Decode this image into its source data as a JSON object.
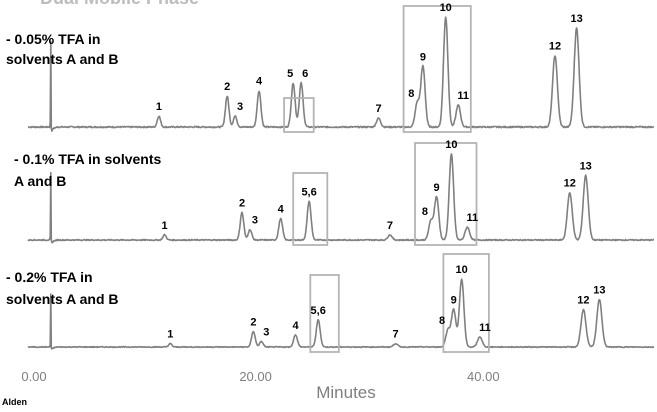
{
  "chart_data": {
    "type": "line",
    "title": "Dual Mobile Phase",
    "xlabel": "Minutes",
    "xlim": [
      0,
      55
    ],
    "x_ticks": [
      "0.00",
      "20.00",
      "40.00"
    ],
    "x_tick_values": [
      0,
      20,
      40
    ],
    "grid": false,
    "footer_text": "Alden",
    "colors": {
      "trace": "#808080",
      "box": "#b4b4b4",
      "text": "#000000",
      "axis_text": "#7f7f7f"
    },
    "series": [
      {
        "name": "- 0.05% TFA in solvents A and B",
        "label_lines": [
          "- 0.05% TFA in",
          "solvents A and B"
        ],
        "injection_time": 2.0,
        "peaks": [
          {
            "label": "1",
            "t": 11.5,
            "h": 0.1
          },
          {
            "label": "2",
            "t": 17.5,
            "h": 0.28
          },
          {
            "label": "3",
            "t": 18.2,
            "h": 0.1
          },
          {
            "label": "4",
            "t": 20.3,
            "h": 0.33
          },
          {
            "label": "5",
            "t": 23.3,
            "h": 0.4
          },
          {
            "label": "6",
            "t": 24.0,
            "h": 0.4
          },
          {
            "label": "7",
            "t": 30.8,
            "h": 0.08
          },
          {
            "label": "8",
            "t": 34.2,
            "h": 0.22
          },
          {
            "label": "9",
            "t": 34.7,
            "h": 0.55
          },
          {
            "label": "10",
            "t": 36.7,
            "h": 1.0
          },
          {
            "label": "11",
            "t": 37.8,
            "h": 0.2
          },
          {
            "label": "12",
            "t": 46.3,
            "h": 0.65
          },
          {
            "label": "13",
            "t": 48.2,
            "h": 0.9
          }
        ],
        "boxes": [
          [
            22.5,
            25.1
          ],
          [
            33.0,
            38.9
          ]
        ]
      },
      {
        "name": "- 0.1% TFA in solvents A and B",
        "label_lines": [
          "- 0.1% TFA in solvents",
          "A and B"
        ],
        "injection_time": 2.0,
        "peaks": [
          {
            "label": "1",
            "t": 12.0,
            "h": 0.06
          },
          {
            "label": "2",
            "t": 18.8,
            "h": 0.32
          },
          {
            "label": "3",
            "t": 19.5,
            "h": 0.12
          },
          {
            "label": "4",
            "t": 22.2,
            "h": 0.25
          },
          {
            "label": "5,6",
            "t": 24.7,
            "h": 0.45
          },
          {
            "label": "7",
            "t": 31.8,
            "h": 0.06
          },
          {
            "label": "8",
            "t": 35.4,
            "h": 0.22
          },
          {
            "label": "9",
            "t": 35.9,
            "h": 0.5
          },
          {
            "label": "10",
            "t": 37.2,
            "h": 1.0
          },
          {
            "label": "11",
            "t": 38.6,
            "h": 0.15
          },
          {
            "label": "12",
            "t": 47.6,
            "h": 0.55
          },
          {
            "label": "13",
            "t": 49.0,
            "h": 0.75
          }
        ],
        "boxes": [
          [
            23.3,
            26.3
          ],
          [
            34.0,
            39.4
          ]
        ]
      },
      {
        "name": "- 0.2% TFA in solvents A and B",
        "label_lines": [
          "- 0.2% TFA in",
          "solvents A and B"
        ],
        "injection_time": 2.0,
        "peaks": [
          {
            "label": "1",
            "t": 12.5,
            "h": 0.05
          },
          {
            "label": "2",
            "t": 19.8,
            "h": 0.23
          },
          {
            "label": "3",
            "t": 20.5,
            "h": 0.08
          },
          {
            "label": "4",
            "t": 23.5,
            "h": 0.18
          },
          {
            "label": "5,6",
            "t": 25.5,
            "h": 0.4
          },
          {
            "label": "7",
            "t": 32.3,
            "h": 0.05
          },
          {
            "label": "8",
            "t": 36.9,
            "h": 0.25
          },
          {
            "label": "9",
            "t": 37.4,
            "h": 0.55
          },
          {
            "label": "10",
            "t": 38.1,
            "h": 1.0
          },
          {
            "label": "11",
            "t": 39.7,
            "h": 0.15
          },
          {
            "label": "12",
            "t": 48.8,
            "h": 0.55
          },
          {
            "label": "13",
            "t": 50.2,
            "h": 0.7
          }
        ],
        "boxes": [
          [
            24.8,
            27.3
          ],
          [
            36.5,
            40.5
          ]
        ]
      }
    ]
  }
}
